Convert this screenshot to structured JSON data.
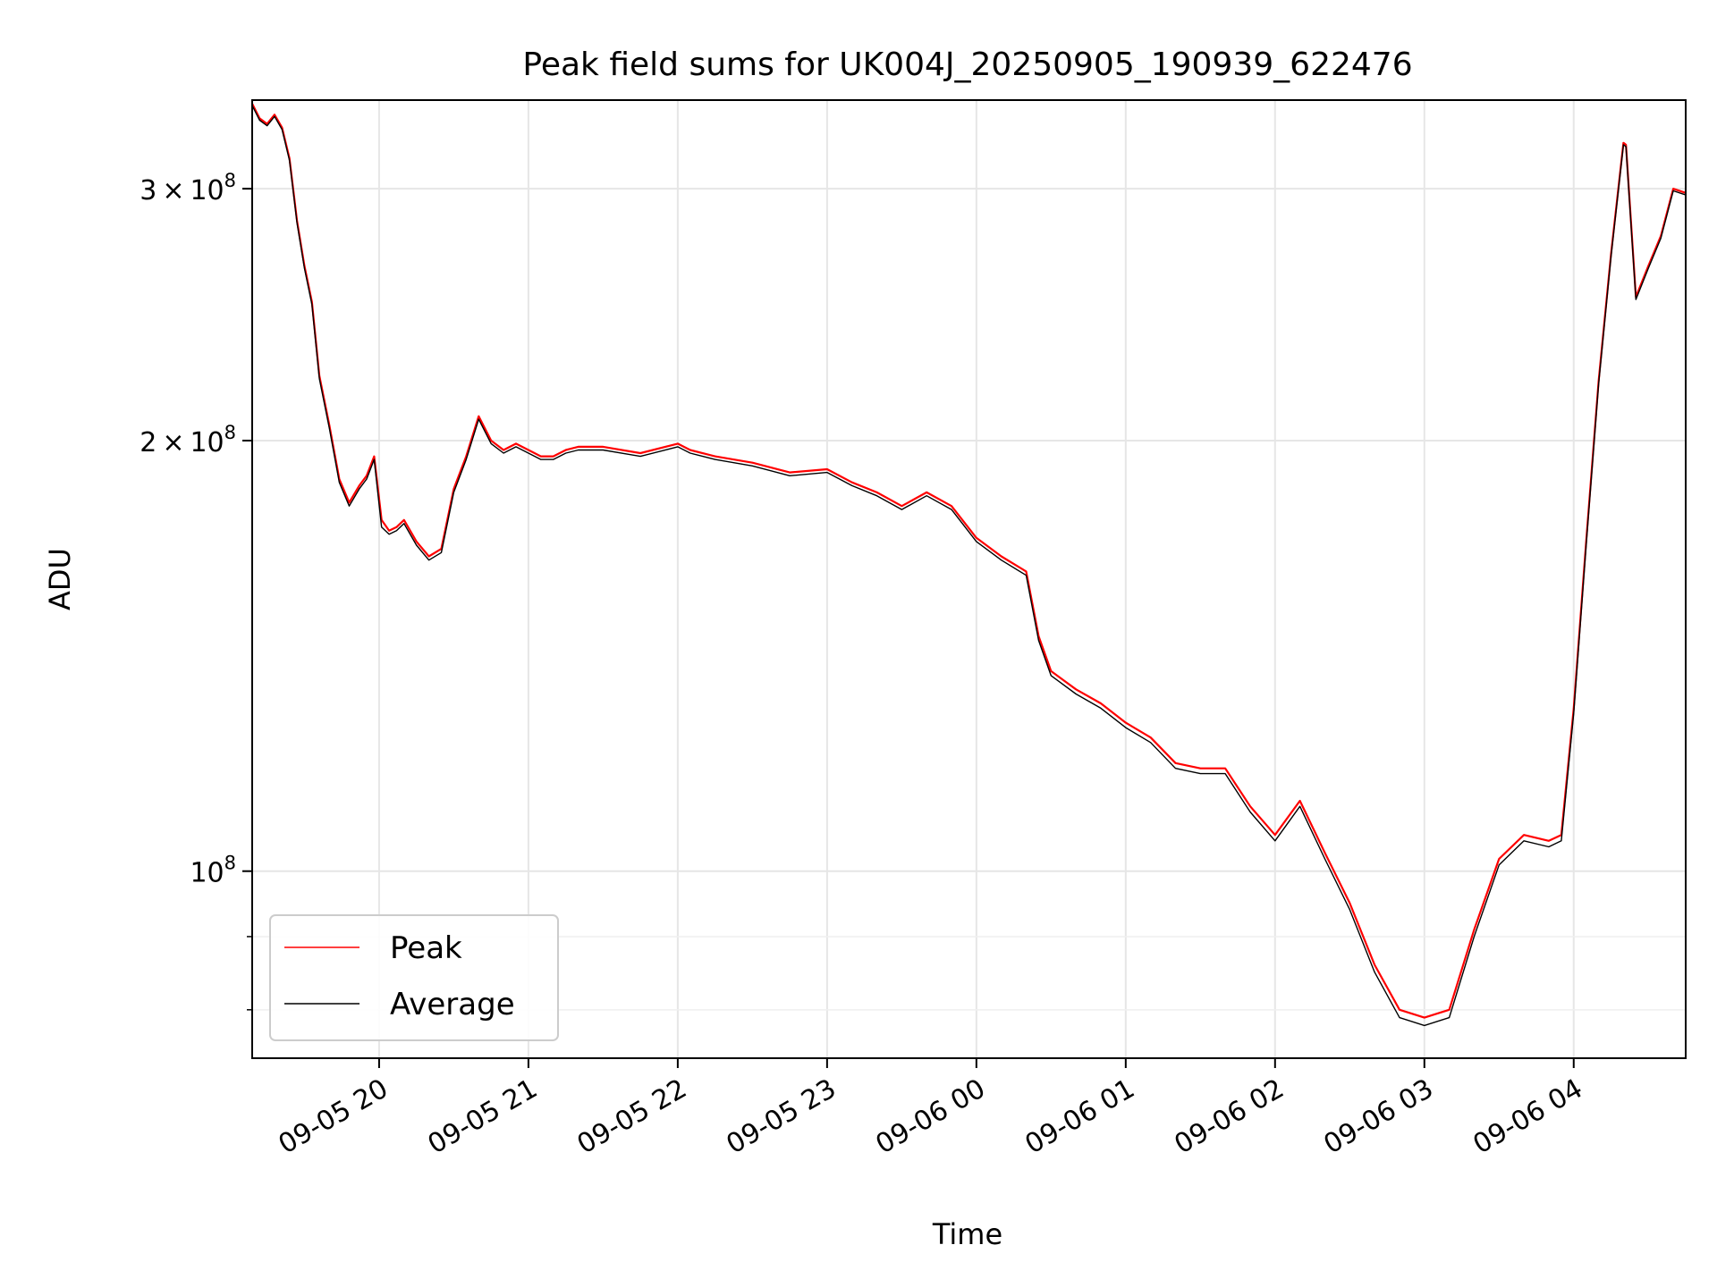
{
  "chart_data": {
    "type": "line",
    "title": "Peak field sums for UK004J_20250905_190939_622476",
    "xlabel": "Time",
    "ylabel": "ADU",
    "y_scale": "log",
    "grid": true,
    "legend_position": "lower-left",
    "xlim": [
      "2025-09-05 19:09",
      "2025-09-06 04:45"
    ],
    "ylim": [
      74000000,
      346000000
    ],
    "x_ticks": [
      {
        "t": "2025-09-05 20:00",
        "label": "09-05 20"
      },
      {
        "t": "2025-09-05 21:00",
        "label": "09-05 21"
      },
      {
        "t": "2025-09-05 22:00",
        "label": "09-05 22"
      },
      {
        "t": "2025-09-05 23:00",
        "label": "09-05 23"
      },
      {
        "t": "2025-09-06 00:00",
        "label": "09-06 00"
      },
      {
        "t": "2025-09-06 01:00",
        "label": "09-06 01"
      },
      {
        "t": "2025-09-06 02:00",
        "label": "09-06 02"
      },
      {
        "t": "2025-09-06 03:00",
        "label": "09-06 03"
      },
      {
        "t": "2025-09-06 04:00",
        "label": "09-06 04"
      }
    ],
    "y_major_ticks": [
      {
        "v": 100000000,
        "base": "10",
        "exp": "8"
      },
      {
        "v": 200000000,
        "mant": "2",
        "base": "10",
        "exp": "8"
      },
      {
        "v": 300000000,
        "mant": "3",
        "base": "10",
        "exp": "8"
      }
    ],
    "y_minor_ticks": [
      80000000,
      90000000
    ],
    "series": [
      {
        "name": "Peak",
        "color": "#ff0000",
        "x": [
          "2025-09-05 19:09",
          "2025-09-05 19:12",
          "2025-09-05 19:15",
          "2025-09-05 19:18",
          "2025-09-05 19:21",
          "2025-09-05 19:24",
          "2025-09-05 19:27",
          "2025-09-05 19:30",
          "2025-09-05 19:33",
          "2025-09-05 19:36",
          "2025-09-05 19:40",
          "2025-09-05 19:44",
          "2025-09-05 19:48",
          "2025-09-05 19:52",
          "2025-09-05 19:55",
          "2025-09-05 19:58",
          "2025-09-05 20:01",
          "2025-09-05 20:04",
          "2025-09-05 20:07",
          "2025-09-05 20:10",
          "2025-09-05 20:15",
          "2025-09-05 20:20",
          "2025-09-05 20:25",
          "2025-09-05 20:30",
          "2025-09-05 20:35",
          "2025-09-05 20:40",
          "2025-09-05 20:45",
          "2025-09-05 20:50",
          "2025-09-05 20:55",
          "2025-09-05 21:00",
          "2025-09-05 21:05",
          "2025-09-05 21:10",
          "2025-09-05 21:15",
          "2025-09-05 21:20",
          "2025-09-05 21:30",
          "2025-09-05 21:45",
          "2025-09-05 22:00",
          "2025-09-05 22:05",
          "2025-09-05 22:15",
          "2025-09-05 22:30",
          "2025-09-05 22:45",
          "2025-09-05 23:00",
          "2025-09-05 23:10",
          "2025-09-05 23:20",
          "2025-09-05 23:30",
          "2025-09-05 23:40",
          "2025-09-05 23:50",
          "2025-09-06 00:00",
          "2025-09-06 00:10",
          "2025-09-06 00:20",
          "2025-09-06 00:25",
          "2025-09-06 00:30",
          "2025-09-06 00:40",
          "2025-09-06 00:50",
          "2025-09-06 01:00",
          "2025-09-06 01:10",
          "2025-09-06 01:20",
          "2025-09-06 01:30",
          "2025-09-06 01:40",
          "2025-09-06 01:50",
          "2025-09-06 02:00",
          "2025-09-06 02:10",
          "2025-09-06 02:20",
          "2025-09-06 02:30",
          "2025-09-06 02:40",
          "2025-09-06 02:50",
          "2025-09-06 03:00",
          "2025-09-06 03:10",
          "2025-09-06 03:20",
          "2025-09-06 03:30",
          "2025-09-06 03:40",
          "2025-09-06 03:50",
          "2025-09-06 03:55",
          "2025-09-06 04:00",
          "2025-09-06 04:05",
          "2025-09-06 04:10",
          "2025-09-06 04:15",
          "2025-09-06 04:20",
          "2025-09-06 04:21",
          "2025-09-06 04:25",
          "2025-09-06 04:30",
          "2025-09-06 04:35",
          "2025-09-06 04:40",
          "2025-09-06 04:45"
        ],
        "y": [
          344000000,
          336000000,
          333000000,
          338000000,
          331000000,
          315000000,
          285000000,
          265000000,
          250000000,
          222000000,
          205000000,
          188000000,
          181000000,
          186000000,
          189000000,
          195000000,
          176000000,
          173000000,
          174000000,
          176000000,
          170000000,
          166000000,
          168000000,
          185000000,
          195000000,
          208000000,
          200000000,
          197000000,
          199000000,
          197000000,
          195000000,
          195000000,
          197000000,
          198000000,
          198000000,
          196000000,
          199000000,
          197000000,
          195000000,
          193000000,
          190000000,
          191000000,
          187000000,
          184000000,
          180000000,
          184000000,
          180000000,
          171000000,
          166000000,
          162000000,
          146000000,
          138000000,
          134000000,
          131000000,
          127000000,
          124000000,
          119000000,
          118000000,
          118000000,
          111000000,
          106000000,
          112000000,
          103000000,
          95000000,
          86000000,
          80000000,
          79000000,
          80000000,
          91000000,
          102000000,
          106000000,
          105000000,
          106000000,
          130000000,
          170000000,
          220000000,
          270000000,
          323000000,
          322000000,
          252000000,
          265000000,
          278000000,
          300000000,
          298000000
        ]
      },
      {
        "name": "Average",
        "color": "#000000",
        "x": [
          "2025-09-05 19:09",
          "2025-09-05 19:12",
          "2025-09-05 19:15",
          "2025-09-05 19:18",
          "2025-09-05 19:21",
          "2025-09-05 19:24",
          "2025-09-05 19:27",
          "2025-09-05 19:30",
          "2025-09-05 19:33",
          "2025-09-05 19:36",
          "2025-09-05 19:40",
          "2025-09-05 19:44",
          "2025-09-05 19:48",
          "2025-09-05 19:52",
          "2025-09-05 19:55",
          "2025-09-05 19:58",
          "2025-09-05 20:01",
          "2025-09-05 20:04",
          "2025-09-05 20:07",
          "2025-09-05 20:10",
          "2025-09-05 20:15",
          "2025-09-05 20:20",
          "2025-09-05 20:25",
          "2025-09-05 20:30",
          "2025-09-05 20:35",
          "2025-09-05 20:40",
          "2025-09-05 20:45",
          "2025-09-05 20:50",
          "2025-09-05 20:55",
          "2025-09-05 21:00",
          "2025-09-05 21:05",
          "2025-09-05 21:10",
          "2025-09-05 21:15",
          "2025-09-05 21:20",
          "2025-09-05 21:30",
          "2025-09-05 21:45",
          "2025-09-05 22:00",
          "2025-09-05 22:05",
          "2025-09-05 22:15",
          "2025-09-05 22:30",
          "2025-09-05 22:45",
          "2025-09-05 23:00",
          "2025-09-05 23:10",
          "2025-09-05 23:20",
          "2025-09-05 23:30",
          "2025-09-05 23:40",
          "2025-09-05 23:50",
          "2025-09-06 00:00",
          "2025-09-06 00:10",
          "2025-09-06 00:20",
          "2025-09-06 00:25",
          "2025-09-06 00:30",
          "2025-09-06 00:40",
          "2025-09-06 00:50",
          "2025-09-06 01:00",
          "2025-09-06 01:10",
          "2025-09-06 01:20",
          "2025-09-06 01:30",
          "2025-09-06 01:40",
          "2025-09-06 01:50",
          "2025-09-06 02:00",
          "2025-09-06 02:10",
          "2025-09-06 02:20",
          "2025-09-06 02:30",
          "2025-09-06 02:40",
          "2025-09-06 02:50",
          "2025-09-06 03:00",
          "2025-09-06 03:10",
          "2025-09-06 03:20",
          "2025-09-06 03:30",
          "2025-09-06 03:40",
          "2025-09-06 03:50",
          "2025-09-06 03:55",
          "2025-09-06 04:00",
          "2025-09-06 04:05",
          "2025-09-06 04:10",
          "2025-09-06 04:15",
          "2025-09-06 04:20",
          "2025-09-06 04:21",
          "2025-09-06 04:25",
          "2025-09-06 04:30",
          "2025-09-06 04:35",
          "2025-09-06 04:40",
          "2025-09-06 04:45"
        ],
        "y": [
          343000000,
          335000000,
          332000000,
          337000000,
          330000000,
          314000000,
          284000000,
          264000000,
          249000000,
          221000000,
          204000000,
          187000000,
          180000000,
          185000000,
          188000000,
          194000000,
          174000000,
          172000000,
          173000000,
          175000000,
          169000000,
          165000000,
          167000000,
          184000000,
          194000000,
          207000000,
          199000000,
          196000000,
          198000000,
          196000000,
          194000000,
          194000000,
          196000000,
          197000000,
          197000000,
          195000000,
          198000000,
          196000000,
          194000000,
          192000000,
          189000000,
          190000000,
          186000000,
          183000000,
          179000000,
          183000000,
          179000000,
          170000000,
          165000000,
          161000000,
          145000000,
          137000000,
          133000000,
          130000000,
          126000000,
          123000000,
          118000000,
          117000000,
          117000000,
          110000000,
          105000000,
          111000000,
          102000000,
          94000000,
          85000000,
          79000000,
          78000000,
          79000000,
          90000000,
          101000000,
          105000000,
          104000000,
          105000000,
          129000000,
          169000000,
          219000000,
          269000000,
          322000000,
          321000000,
          251000000,
          264000000,
          277000000,
          299000000,
          297000000
        ]
      }
    ]
  }
}
